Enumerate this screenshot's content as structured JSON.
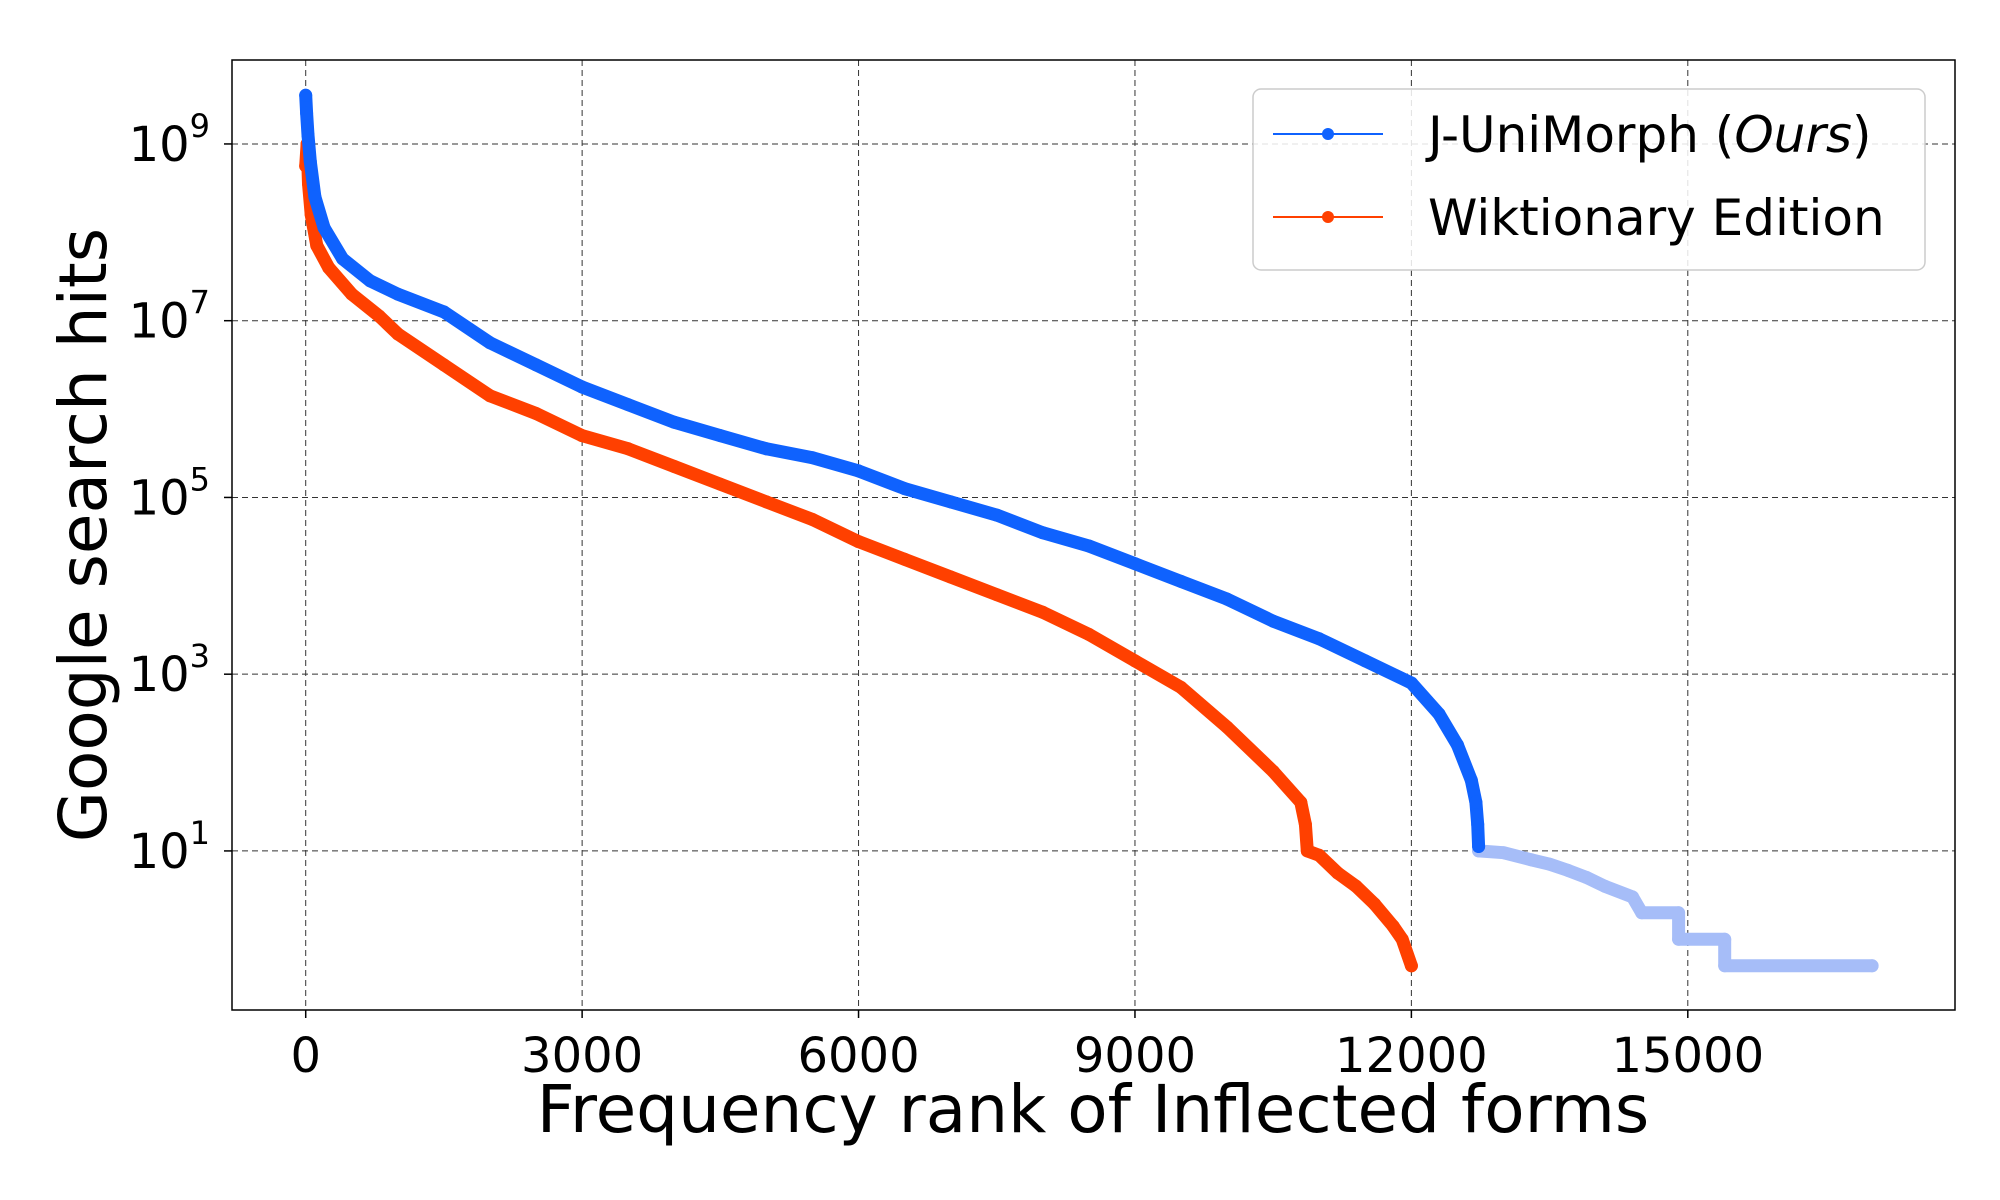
{
  "chart_data": {
    "type": "scatter",
    "xlabel": "Frequency rank of Inflected forms",
    "ylabel": "Google search hits",
    "x_ticks": [
      {
        "value": 0,
        "label": "0"
      },
      {
        "value": 3000,
        "label": "3000"
      },
      {
        "value": 6000,
        "label": "6000"
      },
      {
        "value": 9000,
        "label": "9000"
      },
      {
        "value": 12000,
        "label": "12000"
      },
      {
        "value": 15000,
        "label": "15000"
      }
    ],
    "y_ticks": [
      {
        "exp": 1,
        "base": "10",
        "sup": "1"
      },
      {
        "exp": 3,
        "base": "10",
        "sup": "3"
      },
      {
        "exp": 5,
        "base": "10",
        "sup": "5"
      },
      {
        "exp": 7,
        "base": "10",
        "sup": "7"
      },
      {
        "exp": 9,
        "base": "10",
        "sup": "9"
      }
    ],
    "xlim": [
      -800,
      17900
    ],
    "ylim_log10": [
      -0.8,
      9.95
    ],
    "grid": true,
    "legend_position": "top-right",
    "colors": {
      "jum": "#0f62fe",
      "jum_tail": "#a6bdf8",
      "wik": "#ff4000"
    },
    "legend": {
      "jum_prefix": "J-UniMorph (",
      "jum_italic": "Ours",
      "jum_suffix": ")",
      "wik": "Wiktionary Edition"
    },
    "series": [
      {
        "name": "J-UniMorph (Ours)",
        "color": "#0f62fe",
        "points_log10": [
          [
            0,
            9.55
          ],
          [
            10,
            9.35
          ],
          [
            25,
            9.1
          ],
          [
            50,
            8.8
          ],
          [
            100,
            8.4
          ],
          [
            200,
            8.05
          ],
          [
            400,
            7.7
          ],
          [
            700,
            7.45
          ],
          [
            1000,
            7.3
          ],
          [
            1500,
            7.1
          ],
          [
            2000,
            6.75
          ],
          [
            2500,
            6.5
          ],
          [
            3000,
            6.25
          ],
          [
            3500,
            6.05
          ],
          [
            4000,
            5.85
          ],
          [
            4500,
            5.7
          ],
          [
            5000,
            5.55
          ],
          [
            5500,
            5.45
          ],
          [
            6000,
            5.3
          ],
          [
            6500,
            5.1
          ],
          [
            7000,
            4.95
          ],
          [
            7500,
            4.8
          ],
          [
            8000,
            4.6
          ],
          [
            8500,
            4.45
          ],
          [
            9000,
            4.25
          ],
          [
            9500,
            4.05
          ],
          [
            10000,
            3.85
          ],
          [
            10500,
            3.6
          ],
          [
            11000,
            3.4
          ],
          [
            11500,
            3.15
          ],
          [
            12000,
            2.9
          ],
          [
            12300,
            2.55
          ],
          [
            12500,
            2.2
          ],
          [
            12650,
            1.8
          ],
          [
            12700,
            1.55
          ],
          [
            12720,
            1.3
          ],
          [
            12730,
            1.05
          ]
        ],
        "tail_points_log10": [
          [
            12730,
            1.0
          ],
          [
            13000,
            0.98
          ],
          [
            13300,
            0.9
          ],
          [
            13500,
            0.85
          ],
          [
            13700,
            0.78
          ],
          [
            13900,
            0.7
          ],
          [
            14100,
            0.6
          ],
          [
            14400,
            0.48
          ],
          [
            14500,
            0.3
          ],
          [
            14900,
            0.3
          ],
          [
            14900,
            0.0
          ],
          [
            15400,
            0.0
          ],
          [
            15400,
            -0.3
          ],
          [
            17000,
            -0.3
          ]
        ]
      },
      {
        "name": "Wiktionary Edition",
        "color": "#ff4000",
        "points_log10": [
          [
            0,
            8.75
          ],
          [
            15,
            9.0
          ],
          [
            30,
            8.55
          ],
          [
            60,
            8.2
          ],
          [
            120,
            7.85
          ],
          [
            250,
            7.6
          ],
          [
            500,
            7.3
          ],
          [
            800,
            7.05
          ],
          [
            1000,
            6.85
          ],
          [
            1500,
            6.5
          ],
          [
            2000,
            6.15
          ],
          [
            2500,
            5.95
          ],
          [
            3000,
            5.7
          ],
          [
            3500,
            5.55
          ],
          [
            4000,
            5.35
          ],
          [
            4500,
            5.15
          ],
          [
            5000,
            4.95
          ],
          [
            5500,
            4.75
          ],
          [
            6000,
            4.5
          ],
          [
            6500,
            4.3
          ],
          [
            7000,
            4.1
          ],
          [
            7500,
            3.9
          ],
          [
            8000,
            3.7
          ],
          [
            8500,
            3.45
          ],
          [
            9000,
            3.15
          ],
          [
            9500,
            2.85
          ],
          [
            10000,
            2.4
          ],
          [
            10500,
            1.9
          ],
          [
            10800,
            1.55
          ],
          [
            10850,
            1.3
          ],
          [
            10870,
            1.0
          ],
          [
            11000,
            0.95
          ],
          [
            11200,
            0.75
          ],
          [
            11400,
            0.6
          ],
          [
            11600,
            0.4
          ],
          [
            11800,
            0.15
          ],
          [
            11900,
            0.0
          ],
          [
            12000,
            -0.3
          ]
        ]
      }
    ]
  }
}
